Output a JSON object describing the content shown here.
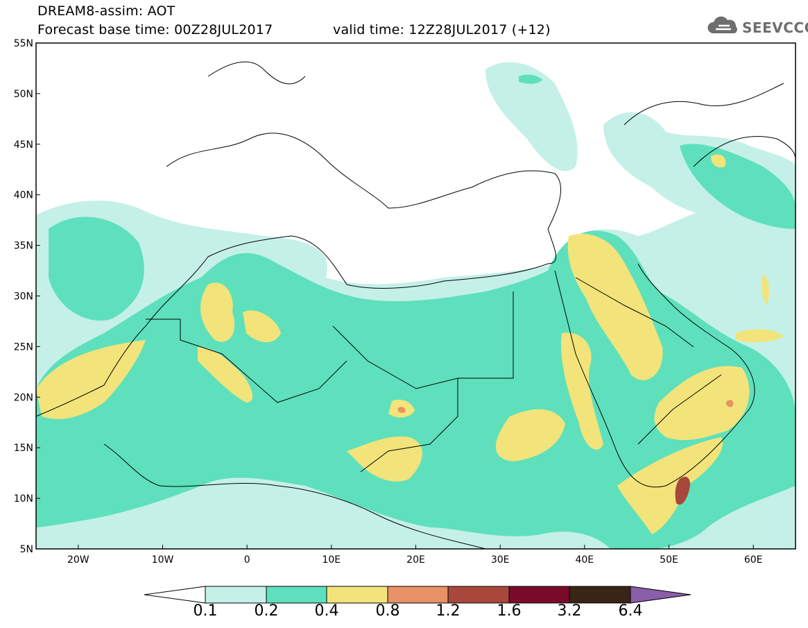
{
  "header": {
    "model_line": "DREAM8-assim: AOT",
    "base_time": "Forecast base time: 00Z28JUL2017",
    "valid_time": "valid time: 12Z28JUL2017 (+12)",
    "logo_text": "SEEVCCC"
  },
  "map": {
    "lat_labels": [
      "55N",
      "50N",
      "45N",
      "40N",
      "35N",
      "30N",
      "25N",
      "20N",
      "15N",
      "10N",
      "5N"
    ],
    "lon_labels": [
      "20W",
      "10W",
      "0",
      "10E",
      "20E",
      "30E",
      "40E",
      "50E",
      "60E"
    ],
    "lat_range": [
      5,
      55
    ],
    "lon_range": [
      -25,
      65
    ]
  },
  "colorbar": {
    "levels": [
      "0.1",
      "0.2",
      "0.4",
      "0.8",
      "1.2",
      "1.6",
      "3.2",
      "6.4"
    ],
    "colors": [
      "#ffffff",
      "#c4f0e8",
      "#5ee0bc",
      "#f2e47a",
      "#e89066",
      "#a8473c",
      "#7a0a2a",
      "#3a2416",
      "#8a5ea8"
    ]
  }
}
